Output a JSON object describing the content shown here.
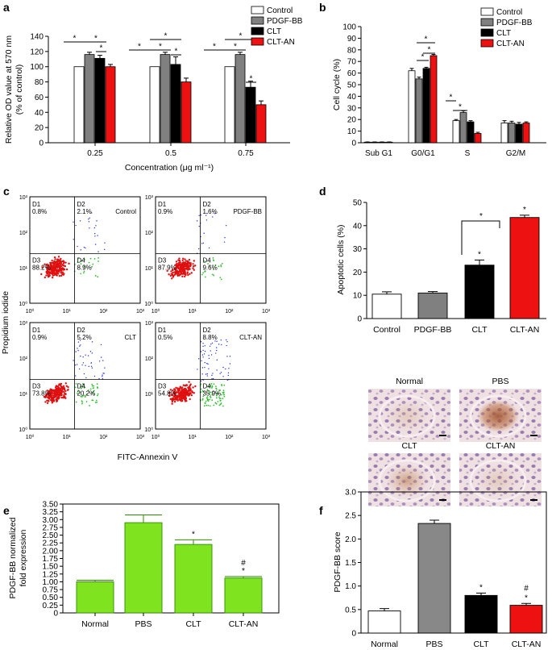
{
  "figure": {
    "panel_labels": [
      "a",
      "b",
      "c",
      "d",
      "e",
      "f"
    ],
    "colors": {
      "control": "#ffffff",
      "pdgf": "#808080",
      "clt": "#000000",
      "cltan": "#ee1111",
      "green": "#7fe31f",
      "green_edge": "#2d8c00",
      "pbs": "#888888",
      "dot_red": "#e01010",
      "dot_blue": "#2030d0",
      "dot_green": "#30c030"
    }
  },
  "chart_data": [
    {
      "id": "a",
      "type": "bar",
      "ylabel_lines": [
        "Relative OD value at 570 nm",
        "(% of control)"
      ],
      "xlabel": "Concentration (μg ml⁻¹)",
      "categories": [
        "0.25",
        "0.5",
        "0.75"
      ],
      "ylim": [
        0,
        140
      ],
      "yticks": [
        "0",
        "20",
        "40",
        "60",
        "80",
        "100",
        "120",
        "140"
      ],
      "legend": [
        "Control",
        "PDGF-BB",
        "CLT",
        "CLT-AN"
      ],
      "series": [
        {
          "name": "Control",
          "values": [
            100,
            100,
            100
          ],
          "err": [
            0,
            0,
            0
          ]
        },
        {
          "name": "PDGF-BB",
          "values": [
            116,
            116,
            116
          ],
          "err": [
            3,
            3,
            3
          ]
        },
        {
          "name": "CLT",
          "values": [
            111,
            103,
            73
          ],
          "err": [
            4,
            10,
            8
          ]
        },
        {
          "name": "CLT-AN",
          "values": [
            100,
            80,
            50
          ],
          "err": [
            3,
            5,
            5
          ]
        }
      ],
      "sig_mark": "*"
    },
    {
      "id": "b",
      "type": "bar",
      "ylabel": "Cell cycle (%)",
      "categories": [
        "Sub G1",
        "G0/G1",
        "S",
        "G2/M"
      ],
      "ylim": [
        0,
        100
      ],
      "yticks": [
        "0",
        "10",
        "20",
        "30",
        "40",
        "50",
        "60",
        "70",
        "80",
        "90",
        "100"
      ],
      "legend": [
        "Control",
        "PDGF-BB",
        "CLT",
        "CLT-AN"
      ],
      "series": [
        {
          "name": "Control",
          "values": [
            0.5,
            62,
            19,
            17
          ],
          "err": [
            0.2,
            2,
            1,
            2
          ]
        },
        {
          "name": "PDGF-BB",
          "values": [
            0.5,
            55,
            26,
            17
          ],
          "err": [
            0.2,
            1.5,
            1.5,
            1.5
          ]
        },
        {
          "name": "CLT",
          "values": [
            0.5,
            64,
            18,
            16
          ],
          "err": [
            0.2,
            1,
            1,
            1.5
          ]
        },
        {
          "name": "CLT-AN",
          "values": [
            0.5,
            75,
            8,
            17
          ],
          "err": [
            0.2,
            1,
            1,
            1
          ]
        }
      ],
      "sig_mark": "*"
    },
    {
      "id": "c",
      "type": "scatter",
      "ylabel": "Propidium iodide",
      "xlabel": "FITC-Annexin V",
      "tick_labels": [
        "10⁰",
        "10¹",
        "10²",
        "10³"
      ],
      "quadrant_names": [
        "D1",
        "D2",
        "D3",
        "D4"
      ],
      "plots": [
        {
          "name": "Control",
          "D1": "0.8%",
          "D2": "2.1%",
          "D3": "88.2%",
          "D4": "8.9%"
        },
        {
          "name": "PDGF-BB",
          "D1": "0.9%",
          "D2": "1.6%",
          "D3": "87.9%",
          "D4": "9.6%"
        },
        {
          "name": "CLT",
          "D1": "0.9%",
          "D2": "5.2%",
          "D3": "73.8%",
          "D4": "20.2%"
        },
        {
          "name": "CLT-AN",
          "D1": "0.5%",
          "D2": "8.8%",
          "D3": "54.8%",
          "D4": "35.9%"
        }
      ]
    },
    {
      "id": "d",
      "type": "bar",
      "ylabel": "Apoptotic cells (%)",
      "categories": [
        "Control",
        "PDGF-BB",
        "CLT",
        "CLT-AN"
      ],
      "values": [
        10.5,
        11,
        23,
        43.5
      ],
      "err": [
        1,
        0.6,
        2.2,
        1
      ],
      "ylim": [
        0,
        50
      ],
      "yticks": [
        "0",
        "10",
        "20",
        "30",
        "40",
        "50"
      ],
      "sig_mark": "*"
    },
    {
      "id": "e",
      "type": "bar",
      "ylabel_lines": [
        "PDGF-BB normalized",
        "fold expression"
      ],
      "categories": [
        "Normal",
        "PBS",
        "CLT",
        "CLT-AN"
      ],
      "values": [
        1.0,
        2.9,
        2.2,
        1.12
      ],
      "err": [
        0.05,
        0.25,
        0.15,
        0.05
      ],
      "ylim": [
        0,
        3.5
      ],
      "yticks": [
        "0",
        "0.25",
        "0.50",
        "0.75",
        "1.00",
        "1.25",
        "1.50",
        "1.75",
        "2.00",
        "2.25",
        "2.50",
        "2.75",
        "3.00",
        "3.25",
        "3.50"
      ],
      "marks": [
        "",
        "",
        "*",
        "*"
      ],
      "hash_mark": "#"
    },
    {
      "id": "f",
      "type": "bar",
      "ylabel": "PDGF-BB score",
      "image_labels": [
        "Normal",
        "PBS",
        "CLT",
        "CLT-AN"
      ],
      "categories": [
        "Normal",
        "PBS",
        "CLT",
        "CLT-AN"
      ],
      "values": [
        0.47,
        2.33,
        0.8,
        0.59
      ],
      "err": [
        0.05,
        0.07,
        0.05,
        0.04
      ],
      "ylim": [
        0,
        3.0
      ],
      "yticks": [
        "0",
        "0.5",
        "1.0",
        "1.5",
        "2.0",
        "2.5",
        "3.0"
      ],
      "marks": [
        "",
        "",
        "*",
        "*"
      ],
      "hash_mark": "#"
    }
  ]
}
